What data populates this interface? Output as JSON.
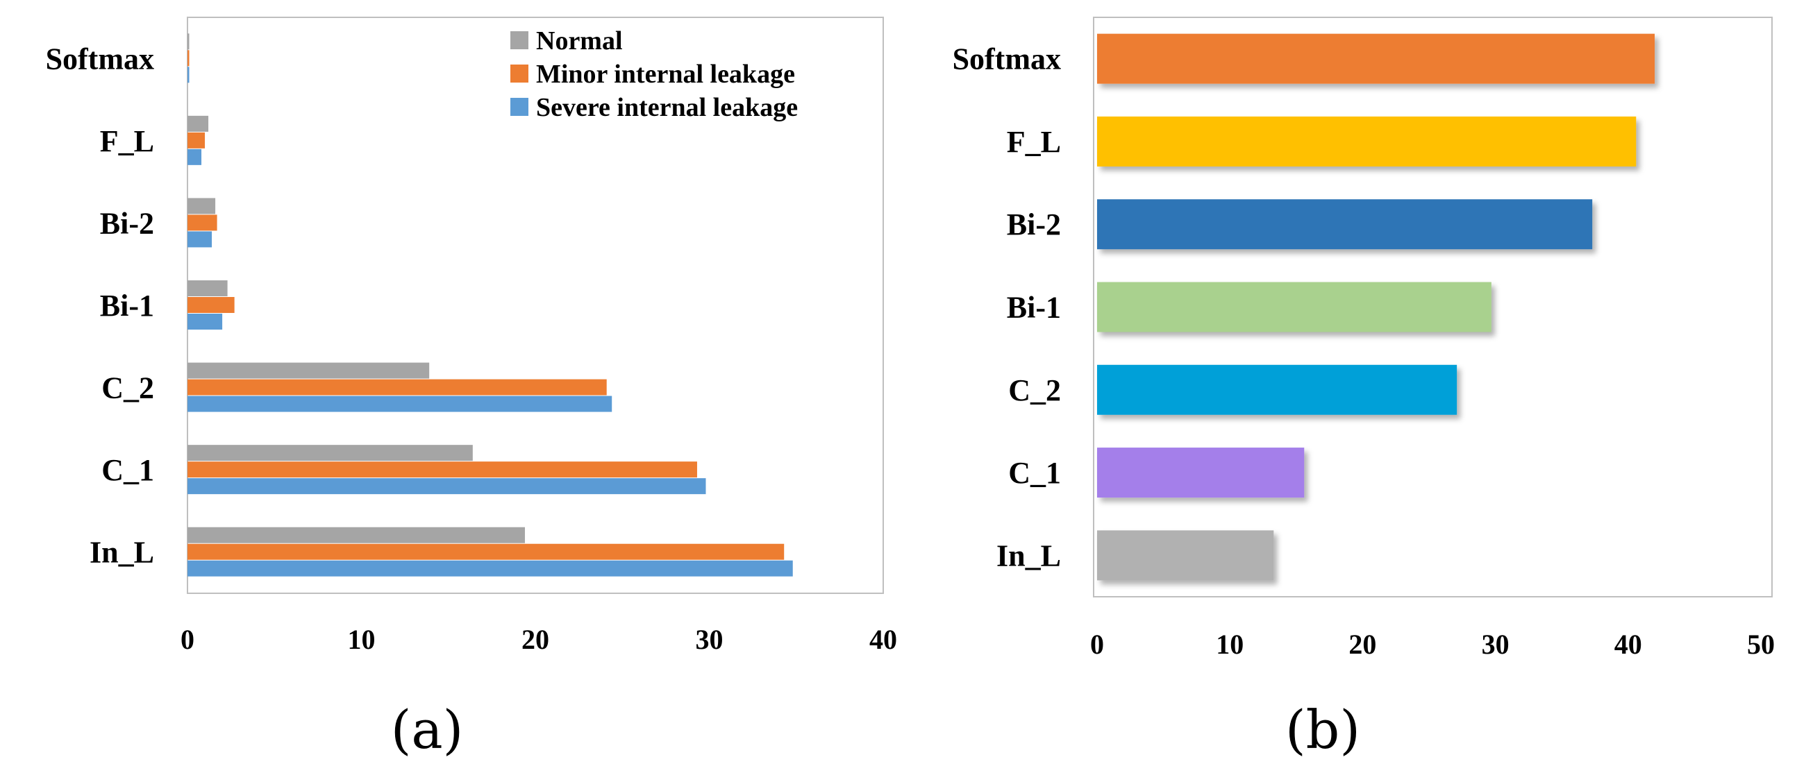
{
  "chart_data": [
    {
      "type": "bar",
      "orientation": "horizontal",
      "caption": "(a)",
      "categories": [
        "Softmax",
        "F_L",
        "Bi-2",
        "Bi-1",
        "C_2",
        "C_1",
        "In_L"
      ],
      "series": [
        {
          "name": "Normal",
          "color": "#A5A5A5",
          "values": [
            0.1,
            1.2,
            1.6,
            2.3,
            13.9,
            16.4,
            19.4
          ]
        },
        {
          "name": "Minor internal leakage",
          "color": "#ED7D31",
          "values": [
            0.1,
            1.0,
            1.7,
            2.7,
            24.1,
            29.3,
            34.3
          ]
        },
        {
          "name": "Severe internal leakage",
          "color": "#5B9BD5",
          "values": [
            0.1,
            0.8,
            1.4,
            2.0,
            24.4,
            29.8,
            34.8
          ]
        }
      ],
      "xlim": [
        0,
        40
      ],
      "xticks": [
        "0",
        "10",
        "20",
        "30",
        "40"
      ],
      "legend_position": "top-right",
      "grid": false
    },
    {
      "type": "bar",
      "orientation": "horizontal",
      "caption": "(b)",
      "categories": [
        "Softmax",
        "F_L",
        "Bi-2",
        "Bi-1",
        "C_2",
        "C_1",
        "In_L"
      ],
      "values": [
        42.0,
        40.6,
        37.3,
        29.7,
        27.1,
        15.6,
        13.3
      ],
      "colors": [
        "#ED7D31",
        "#FFC000",
        "#2E75B6",
        "#A9D18E",
        "#00A0D8",
        "#A47FEA",
        "#B1B1B1"
      ],
      "xlim": [
        0,
        50
      ],
      "xticks": [
        "0",
        "10",
        "20",
        "30",
        "40",
        "50"
      ],
      "grid": false
    }
  ]
}
